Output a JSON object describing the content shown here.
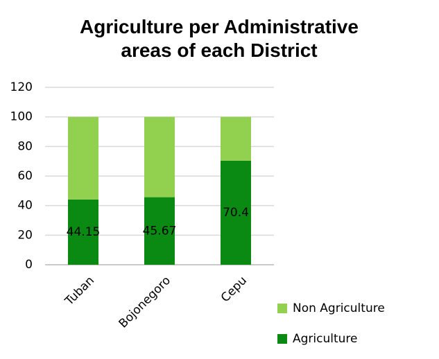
{
  "chart_data": {
    "type": "stacked_bar",
    "title": "Agriculture per Administrative areas of each District",
    "categories": [
      "Tuban",
      "Bojonegoro",
      "Cepu"
    ],
    "series": [
      {
        "name": "Agriculture",
        "color": "#0a8a12",
        "values": [
          44.15,
          45.67,
          70.4
        ]
      },
      {
        "name": "Non Agriculture",
        "color": "#92d050",
        "values": [
          55.85,
          54.33,
          29.6
        ]
      }
    ],
    "data_labels_series": "Agriculture",
    "ylim": [
      0,
      120
    ],
    "yticks": [
      0,
      20,
      40,
      60,
      80,
      100,
      120
    ],
    "grid": true,
    "legend": "right"
  }
}
